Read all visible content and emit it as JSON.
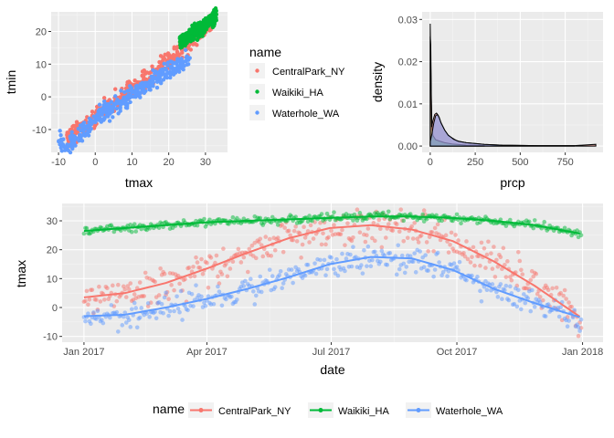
{
  "colors": {
    "CentralPark_NY": "#F8766D",
    "Waikiki_HA": "#00BA38",
    "Waterhole_WA": "#619CFF",
    "panel_bg": "#EBEBEB",
    "grid": "#FFFFFF",
    "text": "#4D4D4D",
    "title_text": "#000000"
  },
  "legend_top": {
    "title": "name",
    "items": [
      "CentralPark_NY",
      "Waikiki_HA",
      "Waterhole_WA"
    ]
  },
  "legend_bottom": {
    "title": "name",
    "items": [
      "CentralPark_NY",
      "Waikiki_HA",
      "Waterhole_WA"
    ]
  },
  "chart_data": [
    {
      "type": "scatter",
      "xlabel": "tmax",
      "ylabel": "tmin",
      "xlim": [
        -12,
        36
      ],
      "ylim": [
        -17,
        26
      ],
      "xticks": [
        -10,
        0,
        10,
        20,
        30
      ],
      "yticks": [
        -10,
        0,
        10,
        20
      ],
      "grid": true,
      "series": [
        {
          "name": "CentralPark_NY",
          "x": [
            -8,
            -5,
            -2,
            0,
            2,
            4,
            6,
            8,
            10,
            12,
            14,
            16,
            18,
            20,
            22,
            24,
            26,
            28,
            30,
            32
          ],
          "y": [
            -13,
            -11,
            -8,
            -6,
            -4,
            -3,
            -1,
            1,
            3,
            4,
            6,
            7,
            9,
            11,
            13,
            15,
            17,
            19,
            21,
            23
          ]
        },
        {
          "name": "Waikiki_HA",
          "x": [
            23,
            25,
            26,
            27,
            28,
            29,
            30,
            31,
            32,
            33
          ],
          "y": [
            17,
            18,
            19,
            20,
            20,
            21,
            22,
            23,
            24,
            25
          ]
        },
        {
          "name": "Waterhole_WA",
          "x": [
            -10,
            -8,
            -5,
            -2,
            0,
            2,
            4,
            6,
            8,
            10,
            12,
            14,
            16,
            18,
            20,
            22,
            24,
            26
          ],
          "y": [
            -13,
            -16,
            -12,
            -9,
            -7,
            -5,
            -4,
            -2,
            -1,
            1,
            2,
            3,
            5,
            6,
            8,
            9,
            11,
            12
          ]
        }
      ]
    },
    {
      "type": "area",
      "xlabel": "prcp",
      "ylabel": "density",
      "xlim": [
        -45,
        960
      ],
      "ylim": [
        -0.0015,
        0.0318
      ],
      "xticks": [
        0,
        250,
        500,
        750
      ],
      "yticks": [
        "0.00",
        "0.01",
        "0.02",
        "0.03"
      ],
      "ytick_values": [
        0,
        0.01,
        0.02,
        0.03
      ],
      "grid": true,
      "series": [
        {
          "name": "CentralPark_NY",
          "x": [
            0,
            8,
            15,
            25,
            35,
            45,
            60,
            80,
            100,
            150,
            200,
            300,
            400,
            600,
            800,
            920
          ],
          "y": [
            0.029,
            0.0045,
            0.006,
            0.0075,
            0.0078,
            0.0072,
            0.0055,
            0.0038,
            0.0025,
            0.0012,
            0.0008,
            0.0004,
            0.0002,
            0.0001,
            0.0001,
            0.0004
          ]
        },
        {
          "name": "Waikiki_HA",
          "x": [
            0,
            3,
            6,
            10,
            15,
            30,
            50,
            80,
            120,
            200,
            300
          ],
          "y": [
            0.026,
            0.024,
            0.012,
            0.004,
            0.0025,
            0.0015,
            0.0012,
            0.0008,
            0.0005,
            0.0002,
            0.0001
          ]
        },
        {
          "name": "Waterhole_WA",
          "x": [
            0,
            10,
            20,
            30,
            40,
            50,
            60,
            80,
            100,
            130,
            160,
            200,
            250,
            300,
            400,
            600,
            800
          ],
          "y": [
            0.001,
            0.003,
            0.0055,
            0.0072,
            0.0075,
            0.0068,
            0.0055,
            0.0038,
            0.0026,
            0.0016,
            0.0011,
            0.0008,
            0.0006,
            0.0004,
            0.0002,
            0.0001,
            0.0001
          ]
        }
      ]
    },
    {
      "type": "scatter",
      "xlabel": "date",
      "ylabel": "tmax",
      "xlim": [
        -16,
        380
      ],
      "ylim": [
        -12,
        36
      ],
      "xticks": [
        "Jan 2017",
        "Apr 2017",
        "Jul 2017",
        "Oct 2017",
        "Jan 2018"
      ],
      "xtick_values": [
        0,
        90,
        181,
        273,
        365
      ],
      "yticks": [
        -10,
        0,
        10,
        20,
        30
      ],
      "grid": true,
      "smooth": true,
      "series": [
        {
          "name": "CentralPark_NY",
          "x": [
            0,
            30,
            60,
            90,
            120,
            150,
            180,
            210,
            240,
            270,
            300,
            330,
            364
          ],
          "y": [
            3.5,
            5,
            8.5,
            13.5,
            19,
            24,
            27.5,
            28.5,
            27,
            23,
            16,
            7.5,
            -3.5
          ]
        },
        {
          "name": "Waikiki_HA",
          "x": [
            0,
            30,
            60,
            90,
            120,
            150,
            180,
            210,
            240,
            270,
            300,
            330,
            364
          ],
          "y": [
            26.5,
            27.5,
            28.5,
            29.5,
            30,
            30.5,
            31,
            31.5,
            31.5,
            31,
            30,
            28.5,
            25.5
          ]
        },
        {
          "name": "Waterhole_WA",
          "x": [
            0,
            30,
            60,
            90,
            120,
            150,
            180,
            210,
            240,
            270,
            300,
            330,
            364
          ],
          "y": [
            -3,
            -2.5,
            0,
            3,
            6.5,
            10.5,
            15,
            17.5,
            17,
            13,
            6.5,
            1.5,
            -3.5
          ]
        }
      ]
    }
  ]
}
